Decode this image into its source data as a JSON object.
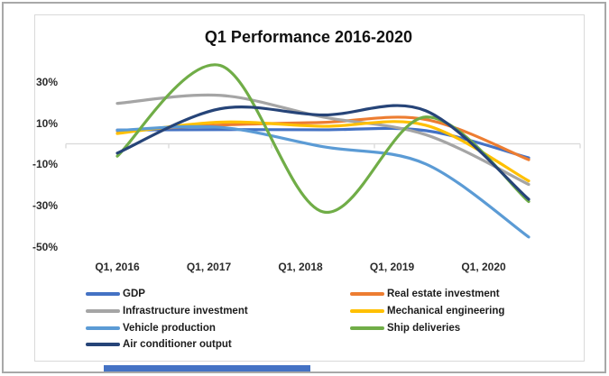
{
  "window": {
    "bottom_accent_color": "#4472C4",
    "outer_border_color": "#a8a8a8",
    "frame_border_color": "#d9d9d9"
  },
  "chart": {
    "title": "Q1 Performance 2016-2020",
    "axis_color": "#d9d9d9"
  },
  "chart_data": {
    "type": "line",
    "smooth": true,
    "title": "Q1 Performance 2016-2020",
    "categories": [
      "Q1, 2016",
      "Q1, 2017",
      "Q1, 2018",
      "Q1, 2019",
      "Q1, 2020"
    ],
    "series": [
      {
        "name": "GDP",
        "color": "#4472C4",
        "values": [
          6.7,
          6.9,
          6.8,
          6.4,
          -6.8
        ]
      },
      {
        "name": "Real estate investment",
        "color": "#ED7D31",
        "values": [
          6.2,
          9.1,
          10.4,
          11.8,
          -7.7
        ]
      },
      {
        "name": "Infrastructure investment",
        "color": "#A5A5A5",
        "values": [
          19.6,
          23.5,
          13.0,
          4.4,
          -19.7
        ]
      },
      {
        "name": "Mechanical engineering",
        "color": "#FFC000",
        "values": [
          5.0,
          10.5,
          8.5,
          9.0,
          -18.0
        ]
      },
      {
        "name": "Vehicle production",
        "color": "#5B9BD5",
        "values": [
          6.5,
          8.0,
          -1.4,
          -9.8,
          -45.2
        ]
      },
      {
        "name": "Ship deliveries",
        "color": "#70AD47",
        "values": [
          -6.0,
          38.0,
          -33.0,
          13.0,
          -28.0
        ]
      },
      {
        "name": "Air conditioner output",
        "color": "#264478",
        "values": [
          -4.5,
          17.0,
          14.0,
          16.0,
          -26.9
        ]
      }
    ],
    "xlabel": "",
    "ylabel": "",
    "ylim": [
      -50,
      40
    ],
    "y_ticks": [
      {
        "value": 30,
        "label": "30%"
      },
      {
        "value": 10,
        "label": "10%"
      },
      {
        "value": -10,
        "label": "-10%"
      },
      {
        "value": -30,
        "label": "-30%"
      },
      {
        "value": -50,
        "label": "-50%"
      }
    ],
    "grid": false,
    "legend_position": "bottom"
  }
}
